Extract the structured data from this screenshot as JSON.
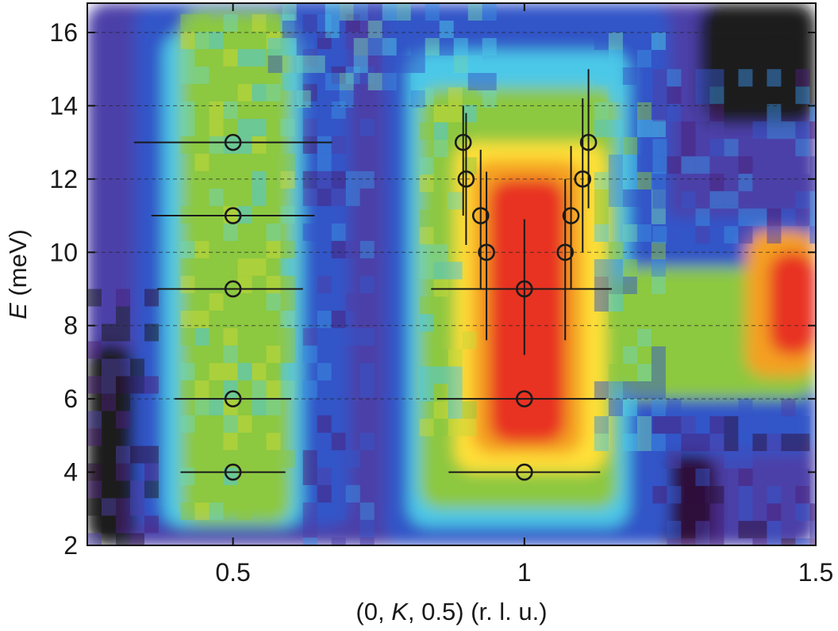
{
  "chart_data": {
    "type": "heatmap",
    "title": "",
    "xlabel": {
      "parts": [
        "(0, ",
        "K",
        ", 0.5) (r. l. u.)"
      ]
    },
    "ylabel": {
      "parts": [
        "E",
        " (meV)"
      ]
    },
    "xlim": [
      0.25,
      1.5
    ],
    "ylim": [
      2,
      16.8
    ],
    "x_ticks": [
      {
        "value": 0.5,
        "label": "0.5"
      },
      {
        "value": 1,
        "label": "1"
      },
      {
        "value": 1.5,
        "label": "1.5"
      }
    ],
    "y_ticks": [
      {
        "value": 2,
        "label": "2"
      },
      {
        "value": 4,
        "label": "4"
      },
      {
        "value": 6,
        "label": "6"
      },
      {
        "value": 8,
        "label": "8"
      },
      {
        "value": 10,
        "label": "10"
      },
      {
        "value": 12,
        "label": "12"
      },
      {
        "value": 14,
        "label": "14"
      },
      {
        "value": 16,
        "label": "16"
      }
    ],
    "grid": "dashed horizontal at y ticks 6-16",
    "colormap": [
      "#1b1b1b",
      "#2e0f3a",
      "#4a1f7a",
      "#4c3fa8",
      "#3355c8",
      "#3a8ee0",
      "#4cc8e8",
      "#6fd4b8",
      "#8cc840",
      "#c8d838",
      "#ffe038",
      "#f4a020",
      "#e83020"
    ],
    "intensity_description": "Broad V-shaped dispersive intensity centered at K=1 (red, strongest at 4-12 meV), green band centered at K=0.5 across 2-16 meV, hot region near K=1.45, E=8-10 meV.",
    "series": [
      {
        "marker": "open-circle",
        "points": [
          {
            "x": 0.5,
            "y": 4,
            "xerr": [
              0.41,
              0.59
            ]
          },
          {
            "x": 0.5,
            "y": 6,
            "xerr": [
              0.4,
              0.6
            ]
          },
          {
            "x": 0.5,
            "y": 9,
            "xerr": [
              0.37,
              0.62
            ]
          },
          {
            "x": 0.5,
            "y": 11,
            "xerr": [
              0.36,
              0.64
            ]
          },
          {
            "x": 0.5,
            "y": 13,
            "xerr": [
              0.33,
              0.67
            ]
          },
          {
            "x": 1,
            "y": 4,
            "xerr": [
              0.87,
              1.13
            ]
          },
          {
            "x": 1,
            "y": 6,
            "xerr": [
              0.85,
              1.14
            ]
          },
          {
            "x": 1,
            "y": 9,
            "xerr": [
              0.84,
              1.15
            ],
            "yerr": [
              7.2,
              10.9
            ]
          },
          {
            "x": 0.935,
            "y": 10,
            "yerr": [
              7.6,
              12.2
            ]
          },
          {
            "x": 1.07,
            "y": 10,
            "yerr": [
              7.6,
              12.0
            ]
          },
          {
            "x": 0.925,
            "y": 11,
            "yerr": [
              9.0,
              12.8
            ]
          },
          {
            "x": 1.08,
            "y": 11,
            "yerr": [
              9.0,
              12.9
            ]
          },
          {
            "x": 0.9,
            "y": 12,
            "yerr": [
              10.2,
              13.8
            ]
          },
          {
            "x": 1.1,
            "y": 12,
            "yerr": [
              10.0,
              14.2
            ]
          },
          {
            "x": 0.895,
            "y": 13,
            "yerr": [
              11.0,
              14.0
            ]
          },
          {
            "x": 1.11,
            "y": 13,
            "yerr": [
              11.2,
              15.0
            ]
          }
        ]
      }
    ]
  }
}
